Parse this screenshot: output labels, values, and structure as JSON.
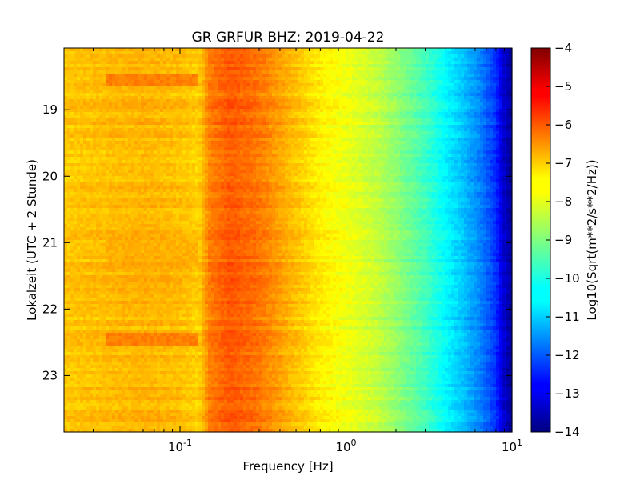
{
  "chart_data": {
    "type": "heatmap",
    "title": "GR GRFUR BHZ: 2019-04-22",
    "xlabel": "Frequency [Hz]",
    "ylabel": "Lokalzeit (UTC + 2 Stunde)",
    "x_scale": "log",
    "xlim": [
      0.02,
      10
    ],
    "x_ticks": [
      {
        "value": 0.1,
        "base": "10",
        "exp": "-1"
      },
      {
        "value": 1,
        "base": "10",
        "exp": "0"
      },
      {
        "value": 10,
        "base": "10",
        "exp": "1"
      }
    ],
    "ylim": [
      18.07,
      23.85
    ],
    "y_inverted": true,
    "y_ticks": [
      "19",
      "20",
      "21",
      "22",
      "23"
    ],
    "colorbar": {
      "label": "Log10(Sqrt(m**2/s**2/Hz))",
      "range": [
        -14,
        -4
      ],
      "ticks": [
        "-4",
        "-5",
        "-6",
        "-7",
        "-8",
        "-9",
        "-10",
        "-11",
        "-12",
        "-13",
        "-14"
      ],
      "colormap": "jet"
    },
    "frequency_profile": [
      {
        "f": 0.02,
        "v": -7.2
      },
      {
        "f": 0.035,
        "v": -7.1
      },
      {
        "f": 0.06,
        "v": -7.0
      },
      {
        "f": 0.1,
        "v": -7.1
      },
      {
        "f": 0.13,
        "v": -7.3
      },
      {
        "f": 0.15,
        "v": -6.5
      },
      {
        "f": 0.2,
        "v": -6.1
      },
      {
        "f": 0.3,
        "v": -6.4
      },
      {
        "f": 0.45,
        "v": -7.0
      },
      {
        "f": 0.7,
        "v": -7.6
      },
      {
        "f": 1.0,
        "v": -7.9
      },
      {
        "f": 1.5,
        "v": -8.3
      },
      {
        "f": 2.0,
        "v": -8.8
      },
      {
        "f": 3.0,
        "v": -9.6
      },
      {
        "f": 4.0,
        "v": -10.3
      },
      {
        "f": 5.0,
        "v": -10.8
      },
      {
        "f": 6.5,
        "v": -11.5
      },
      {
        "f": 8.0,
        "v": -12.3
      },
      {
        "f": 9.0,
        "v": -13.3
      },
      {
        "f": 10.0,
        "v": -13.8
      }
    ],
    "events": [
      {
        "t_start": 18.45,
        "t_end": 18.65,
        "f_max": 0.13,
        "v": -6.5
      },
      {
        "t_start": 22.35,
        "t_end": 22.55,
        "f_max": 0.13,
        "v": -6.5
      },
      {
        "t_start": 20.95,
        "t_end": 21.35,
        "f_max": 0.13,
        "v": -7.0
      }
    ]
  }
}
